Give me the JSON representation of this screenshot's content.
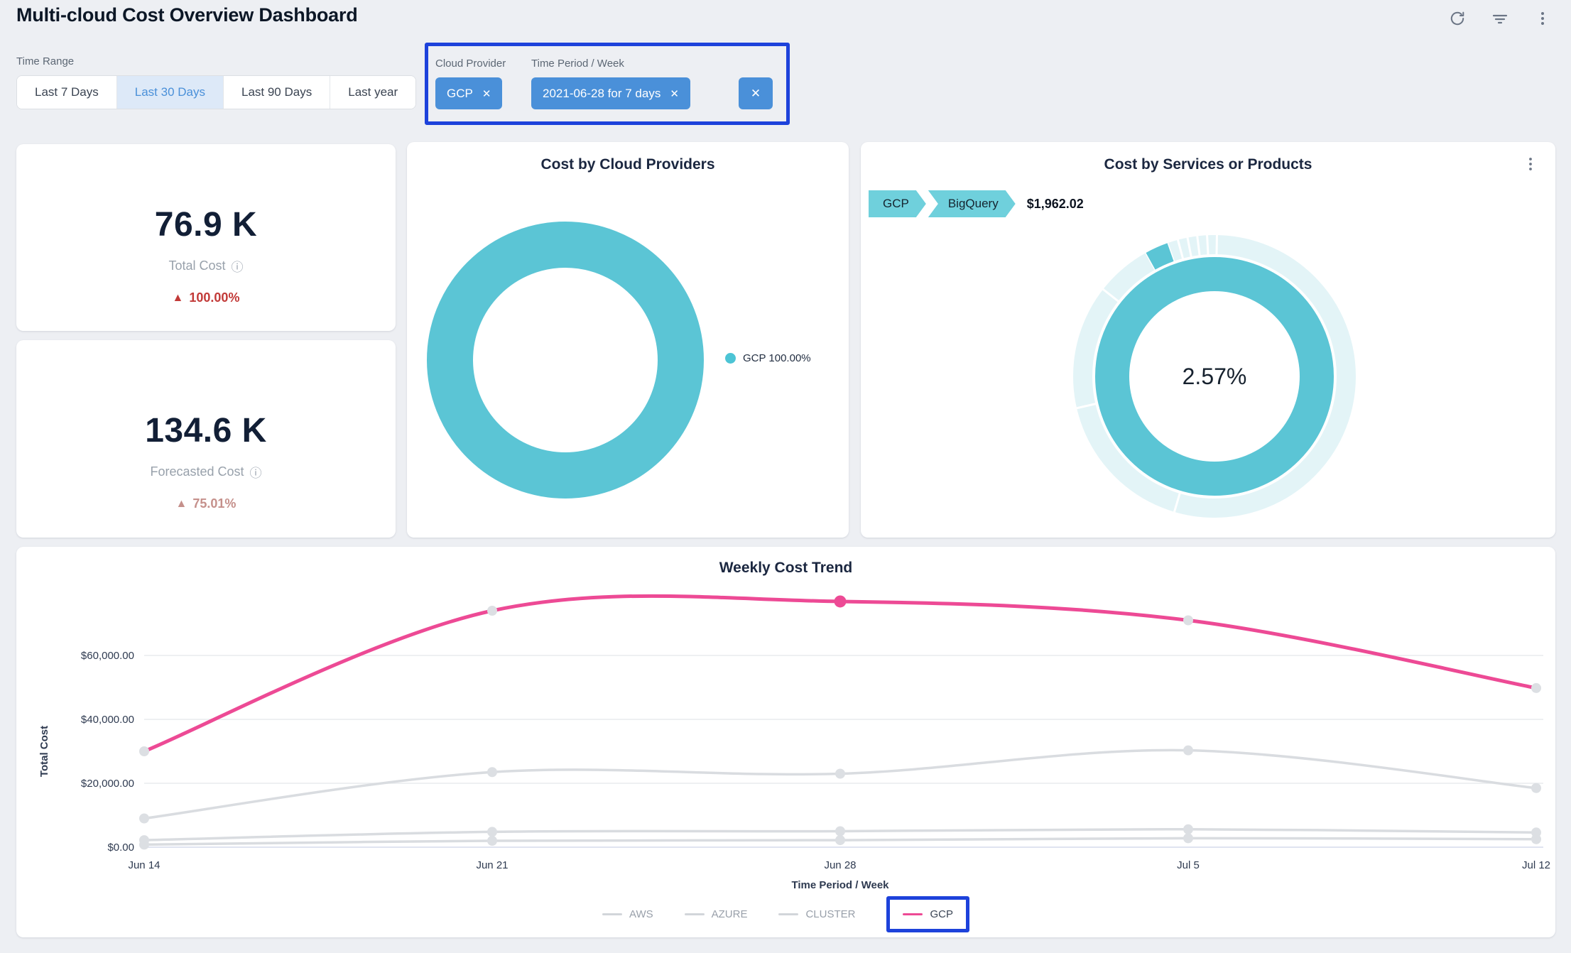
{
  "colors": {
    "teal": "#5bc5d5",
    "teal_light": "#e3f4f7",
    "teal_chip": "#6fd0dc",
    "legend_dot": "#4cc4d5",
    "pink": "#ed4a95",
    "chip_blue": "#4a90d9",
    "annotation_blue": "#1d42db",
    "kpi_red": "#c23a38",
    "kpi_salmon": "#c5908b",
    "gray_line_swatch": "#d2d5da",
    "grid": "#e9ebee",
    "axis_line": "#dfe3f0",
    "gray_series": "#dcdfe3",
    "tick_text": "#2e3a50"
  },
  "icons": {
    "info": "ⓘ",
    "close": "✕",
    "up_triangle": "▲"
  },
  "header": {
    "title": "Multi-cloud Cost Overview Dashboard"
  },
  "time_range": {
    "label": "Time Range",
    "options": [
      {
        "label": "Last 7 Days",
        "selected": false
      },
      {
        "label": "Last 30 Days",
        "selected": true
      },
      {
        "label": "Last 90 Days",
        "selected": false
      },
      {
        "label": "Last year",
        "selected": false
      }
    ]
  },
  "applied_filters": {
    "groups": [
      {
        "label": "Cloud Provider",
        "value": "GCP"
      },
      {
        "label": "Time Period / Week",
        "value": "2021-06-28 for 7 days"
      }
    ]
  },
  "kpis": [
    {
      "value": "76.9 K",
      "label": "Total Cost",
      "delta": "100.00%",
      "trend": "up"
    },
    {
      "value": "134.6 K",
      "label": "Forecasted Cost",
      "delta": "75.01%",
      "trend": "up"
    }
  ],
  "chart_data": [
    {
      "type": "pie",
      "subtype": "donut",
      "title": "Cost by Cloud Providers",
      "labels": [
        "GCP"
      ],
      "values": [
        100.0
      ],
      "legend": [
        {
          "label": "GCP 100.00%",
          "color": "#4cc4d5"
        }
      ],
      "legend_position": "right"
    },
    {
      "type": "pie",
      "subtype": "sunburst",
      "title": "Cost by Services or Products",
      "breadcrumb": [
        "GCP",
        "BigQuery"
      ],
      "selected_cost": "$1,962.02",
      "center_label": "2.57%",
      "inner_ring": {
        "label": "GCP",
        "value": 100
      },
      "outer_highlight": {
        "label": "BigQuery",
        "percent": 2.57,
        "start_deg": -29,
        "end_deg": -19.5
      },
      "outer_divider_angles_deg": [
        1,
        -3,
        -7,
        -11,
        -15,
        -19.5,
        -29,
        -52,
        196.5,
        257
      ]
    },
    {
      "type": "line",
      "title": "Weekly Cost Trend",
      "x": [
        "Jun 14",
        "Jun 21",
        "Jun 28",
        "Jul 5",
        "Jul 12"
      ],
      "xlabel": "Time Period / Week",
      "ylabel": "Total Cost",
      "ylim": [
        0,
        84000
      ],
      "grid": true,
      "legend_position": "bottom",
      "highlighted_legend": "GCP",
      "yticks": [
        {
          "value": 0,
          "label": "$0.00"
        },
        {
          "value": 20000,
          "label": "$20,000.00"
        },
        {
          "value": 40000,
          "label": "$40,000.00"
        },
        {
          "value": 60000,
          "label": "$60,000.00"
        }
      ],
      "series": [
        {
          "name": "AWS",
          "color": "#d9dce0",
          "values": [
            800,
            2000,
            2200,
            2800,
            2500
          ]
        },
        {
          "name": "AZURE",
          "color": "#d9dce0",
          "values": [
            2200,
            4800,
            5000,
            5600,
            4600
          ]
        },
        {
          "name": "CLUSTER",
          "color": "#d9dce0",
          "values": [
            9000,
            23500,
            23000,
            30300,
            18500
          ]
        },
        {
          "name": "GCP",
          "color": "#ed4a95",
          "values": [
            30000,
            74000,
            76900,
            71000,
            49800
          ],
          "highlight_index": 2
        }
      ]
    }
  ]
}
